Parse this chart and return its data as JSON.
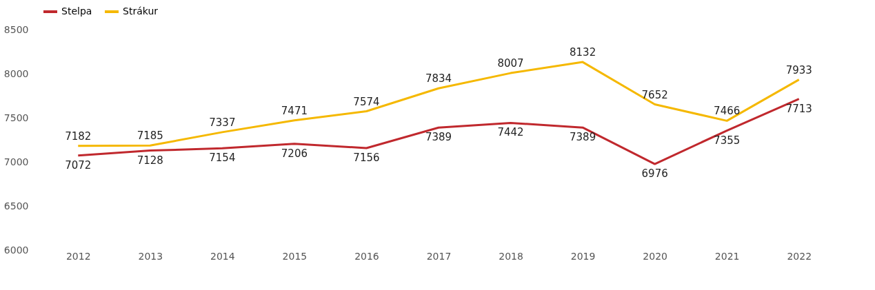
{
  "chart_data": {
    "type": "line",
    "categories": [
      "2012",
      "2013",
      "2014",
      "2015",
      "2016",
      "2017",
      "2018",
      "2019",
      "2020",
      "2021",
      "2022"
    ],
    "series": [
      {
        "name": "Stelpa",
        "color": "#c0282d",
        "values": [
          7072,
          7128,
          7154,
          7206,
          7156,
          7389,
          7442,
          7389,
          6976,
          7355,
          7713
        ]
      },
      {
        "name": "Strákur",
        "color": "#f5b800",
        "values": [
          7182,
          7185,
          7337,
          7471,
          7574,
          7834,
          8007,
          8132,
          7652,
          7466,
          7933
        ]
      }
    ],
    "ylim": [
      6000,
      8500
    ],
    "yticks": [
      6000,
      6500,
      7000,
      7500,
      8000,
      8500
    ],
    "grid": false,
    "legend": "top",
    "data_labels": true,
    "marker": "none",
    "line_style": "solid"
  }
}
